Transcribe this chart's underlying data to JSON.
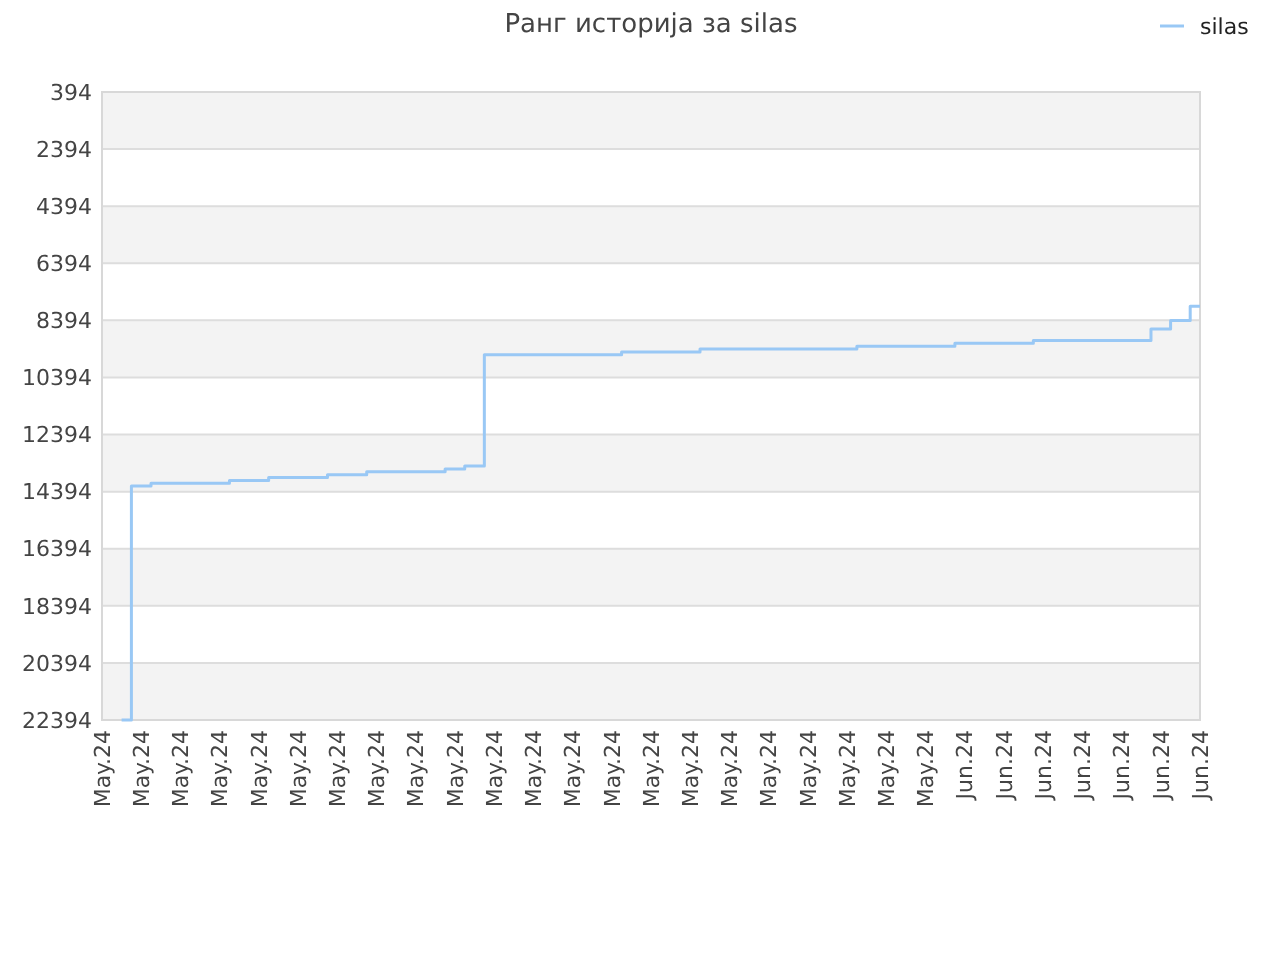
{
  "chart_data": {
    "type": "step",
    "title": "Ранг историја за silas",
    "legend": "top right",
    "grid": "y",
    "categories": [
      "May.24",
      null,
      "May.24",
      null,
      "May.24",
      null,
      "May.24",
      null,
      "May.24",
      null,
      "May.24",
      null,
      "May.24",
      null,
      "May.24",
      null,
      "May.24",
      null,
      "May.24",
      null,
      "May.24",
      null,
      "May.24",
      null,
      "May.24",
      null,
      "May.24",
      null,
      "May.24",
      null,
      "May.24",
      null,
      "May.24",
      null,
      "May.24",
      null,
      "May.24",
      null,
      "May.24",
      null,
      "May.24",
      null,
      "May.24",
      null,
      "Jun.24",
      null,
      "Jun.24",
      null,
      "Jun.24",
      null,
      "Jun.24",
      null,
      "Jun.24",
      null,
      "Jun.24",
      null,
      "Jun.24"
    ],
    "ylim": [
      22394,
      394
    ],
    "yticks": [
      394,
      2394,
      4394,
      6394,
      8394,
      10394,
      12394,
      14394,
      16394,
      18394,
      20394,
      22394
    ],
    "series": [
      {
        "name": "silas",
        "color": "#99c8f5",
        "values": [
          null,
          22394,
          14200,
          14100,
          14100,
          14100,
          14100,
          14000,
          14000,
          13900,
          13900,
          13900,
          13800,
          13800,
          13700,
          13700,
          13700,
          13700,
          13600,
          13500,
          9600,
          9600,
          9600,
          9600,
          9600,
          9600,
          9600,
          9500,
          9500,
          9500,
          9500,
          9400,
          9400,
          9400,
          9400,
          9400,
          9400,
          9400,
          9400,
          9300,
          9300,
          9300,
          9300,
          9300,
          9200,
          9200,
          9200,
          9200,
          9100,
          9100,
          9100,
          9100,
          9100,
          9100,
          8700,
          8400,
          7900
        ]
      }
    ]
  }
}
